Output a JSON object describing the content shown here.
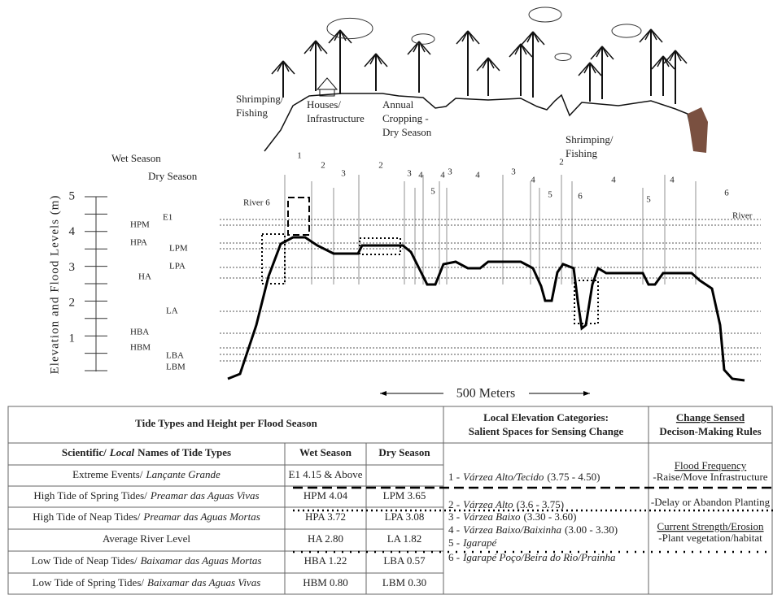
{
  "illustration": {
    "labels": [
      {
        "lines": [
          "Shrimping/",
          "Fishing"
        ]
      },
      {
        "lines": [
          "Houses/",
          "Infrastructure"
        ]
      },
      {
        "lines": [
          "Annual",
          "Cropping -",
          "Dry Season"
        ]
      },
      {
        "lines": [
          "Shrimping/",
          "Fishing"
        ]
      }
    ]
  },
  "profile": {
    "seasons": [
      "Wet Season",
      "Dry Season"
    ],
    "y_axis_label": "Elevation and Flood Levels (m)",
    "y_ticks": [
      1,
      2,
      3,
      4,
      5
    ],
    "levels": [
      "E1",
      "HPM",
      "HPA",
      "LPM",
      "LPA",
      "HA",
      "LA",
      "HBA",
      "HBM",
      "LBA",
      "LBM"
    ],
    "zones": [
      2,
      1,
      2,
      3,
      2,
      3,
      4,
      5,
      4,
      3,
      4,
      3,
      4,
      5,
      6,
      4,
      5,
      4,
      6
    ],
    "river_labels": [
      "River 6",
      "River"
    ],
    "scale": "500 Meters"
  },
  "table": {
    "title": "Tide Types and Height per Flood Season",
    "columns": {
      "name": {
        "scientific": "Scientific/",
        "local": "Local",
        "rest": "Names of Tide Types"
      },
      "wet": "Wet Season",
      "dry": "Dry Season"
    },
    "rows": [
      {
        "scientific": "Extreme Events/",
        "local": "Lançante Grande",
        "wet": "E1 4.15 & Above"
      },
      {
        "scientific": "High Tide of Spring Tides/",
        "local": "Preamar das Aguas Vivas",
        "wet": "HPM 4.04",
        "dry": "LPM 3.65"
      },
      {
        "scientific": "High Tide of Neap Tides/",
        "local": "Preamar das Aguas Mortas",
        "wet": "HPA 3.72",
        "dry": "LPA 3.08"
      },
      {
        "scientific": "Average River Level",
        "wet": "HA 2.80",
        "dry": "LA 1.82"
      },
      {
        "scientific": "Low Tide of Neap Tides/",
        "local": "Baixamar das Aguas Mortas",
        "wet": "HBA 1.22",
        "dry": "LBA 0.57"
      },
      {
        "scientific": "Low Tide of Spring Tides/",
        "local": "Baixamar das Aguas Vivas",
        "wet": "HBM 0.80",
        "dry": "LBM 0.30"
      }
    ],
    "elevation": {
      "title": [
        "Local Elevation Categories:",
        "Salient Spaces for Sensing Change"
      ],
      "items": [
        {
          "num": "1 -",
          "name": "Várzea Alto/Tecido",
          "range": "(3.75 - 4.50)"
        },
        {
          "num": "2 -",
          "name": "Várzea Alto",
          "range": "(3.6 - 3.75)"
        },
        {
          "num": "3 -",
          "name": "Várzea Baixo",
          "range": "(3.30 - 3.60)"
        },
        {
          "num": "4 -",
          "name": "Várzea Baixo/Baixinha",
          "range": "(3.00 - 3.30)"
        },
        {
          "num": "5 -",
          "name": "Igarapé"
        },
        {
          "num": "6 -",
          "name": "Igarapé Poço/Beira do Rio/Prainha"
        }
      ]
    },
    "rules": {
      "title": [
        "Change Sensed",
        "Decison-Making Rules"
      ],
      "items": [
        {
          "heading": "Flood Frequency",
          "text": "-Raise/Move Infrastructure"
        },
        {
          "text": "-Delay or Abandon Planting"
        },
        {
          "heading": "Current Strength/Erosion",
          "text": "-Plant vegetation/habitat"
        }
      ]
    }
  }
}
